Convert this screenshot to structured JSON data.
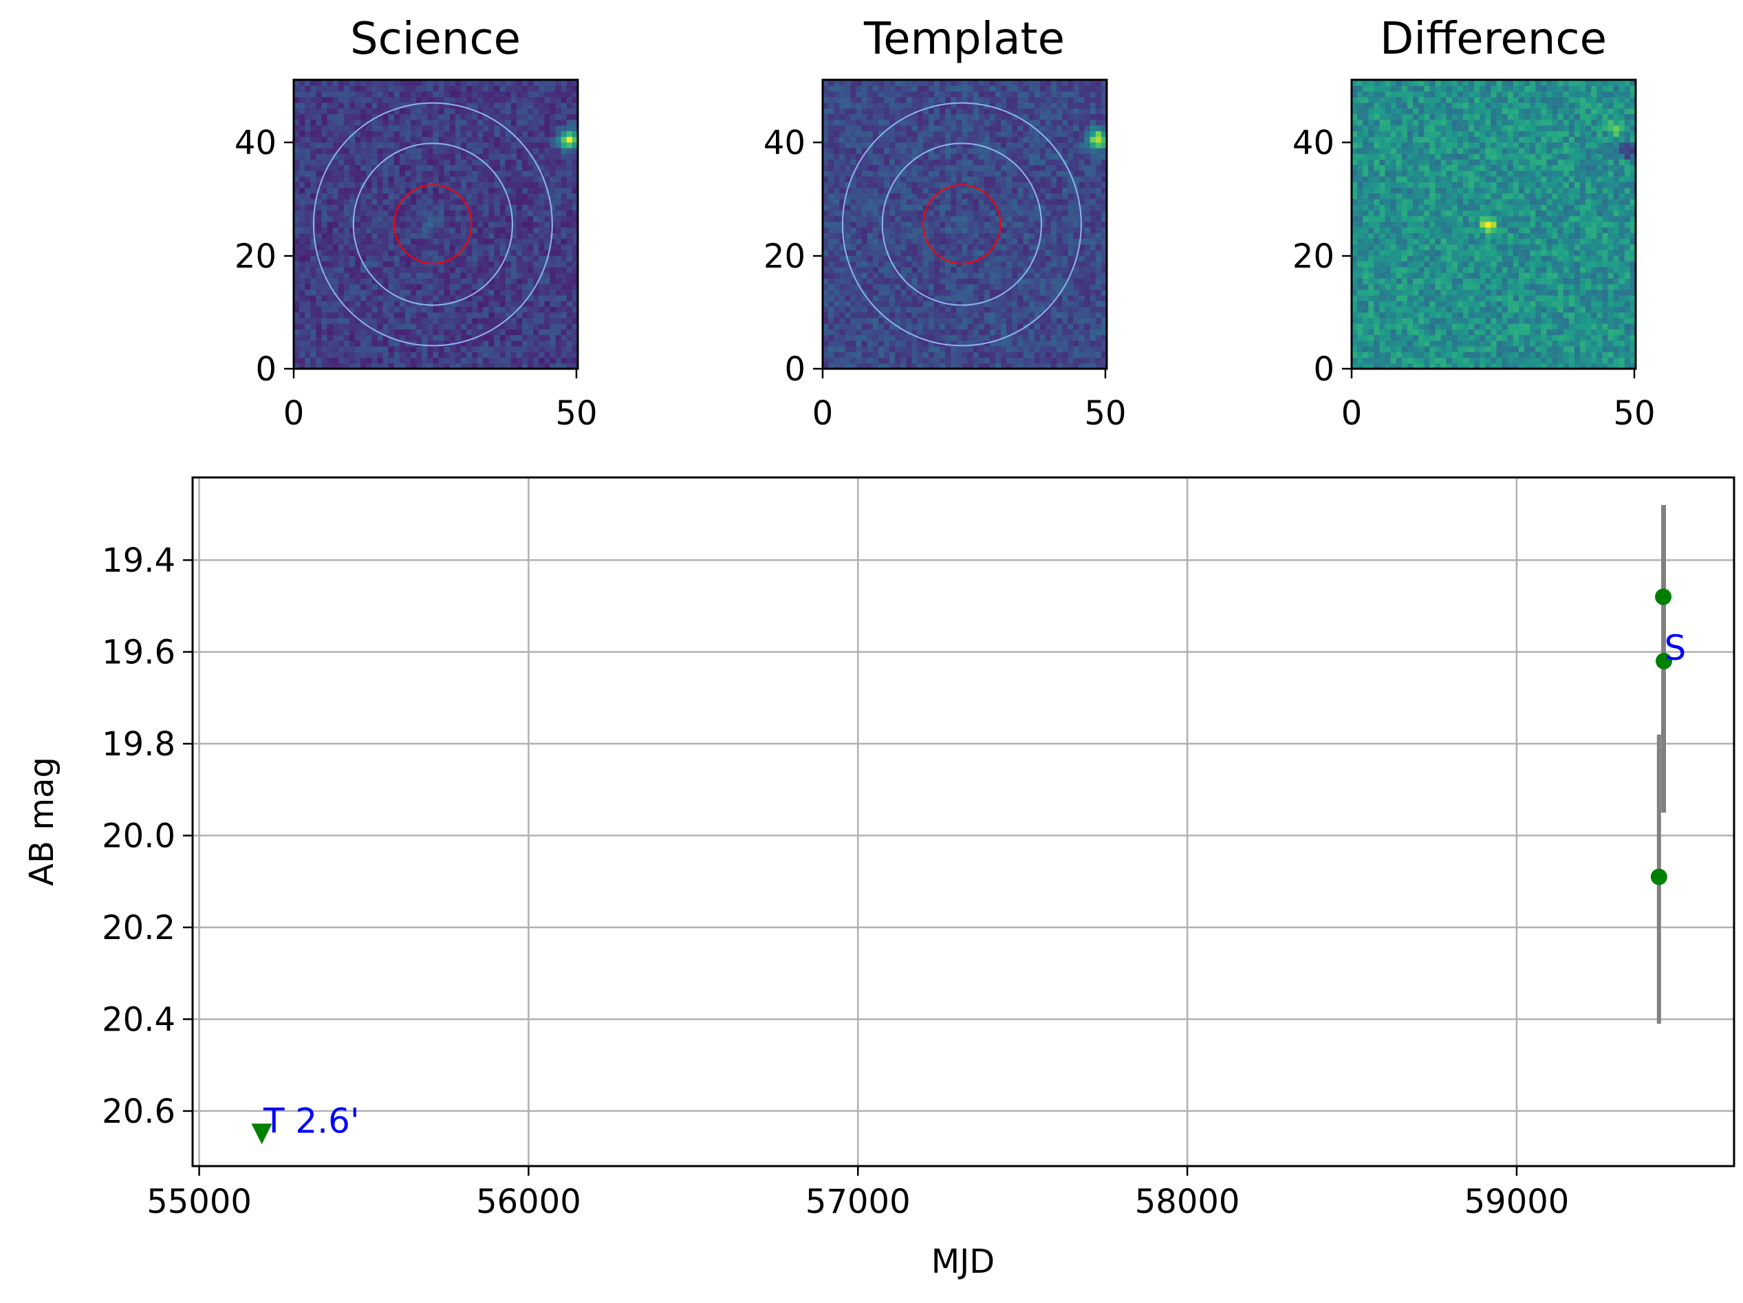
{
  "chart_data": [
    {
      "type": "heatmap",
      "title": "Science",
      "xlim": [
        0,
        50
      ],
      "ylim": [
        0,
        50
      ],
      "xticks": [
        "0",
        "50"
      ],
      "yticks": [
        "0",
        "20",
        "40"
      ],
      "colormap": "viridis",
      "grid_size": 51,
      "background_level": 0.18,
      "noise_level": 0.09,
      "sources": [
        {
          "x": 49,
          "y": 40,
          "amplitude": 0.75,
          "sigma": 1.2
        },
        {
          "x": 24,
          "y": 25,
          "amplitude": 0.12,
          "sigma": 1.5
        }
      ],
      "circles": [
        {
          "cx": 24.5,
          "cy": 25,
          "r": 6.8,
          "color": "#ff0000"
        },
        {
          "cx": 24.5,
          "cy": 25,
          "r": 14,
          "color": "#8fb4f2"
        },
        {
          "cx": 24.5,
          "cy": 25,
          "r": 21,
          "color": "#8fb4f2"
        }
      ]
    },
    {
      "type": "heatmap",
      "title": "Template",
      "xlim": [
        0,
        50
      ],
      "ylim": [
        0,
        50
      ],
      "xticks": [
        "0",
        "50"
      ],
      "yticks": [
        "0",
        "20",
        "40"
      ],
      "colormap": "viridis",
      "grid_size": 51,
      "background_level": 0.22,
      "noise_level": 0.09,
      "sources": [
        {
          "x": 49,
          "y": 40,
          "amplitude": 0.75,
          "sigma": 1.2
        },
        {
          "x": 24,
          "y": 24,
          "amplitude": 0.05,
          "sigma": 1.5
        }
      ],
      "circles": [
        {
          "cx": 24.5,
          "cy": 25,
          "r": 6.8,
          "color": "#ff0000"
        },
        {
          "cx": 24.5,
          "cy": 25,
          "r": 14,
          "color": "#8fb4f2"
        },
        {
          "cx": 24.5,
          "cy": 25,
          "r": 21,
          "color": "#8fb4f2"
        }
      ]
    },
    {
      "type": "heatmap",
      "title": "Difference",
      "xlim": [
        0,
        50
      ],
      "ylim": [
        0,
        50
      ],
      "xticks": [
        "0",
        "50"
      ],
      "yticks": [
        "0",
        "20",
        "40"
      ],
      "colormap": "viridis",
      "grid_size": 51,
      "background_level": 0.5,
      "noise_level": 0.13,
      "sources": [
        {
          "x": 24,
          "y": 25,
          "amplitude": 0.45,
          "sigma": 1.0
        },
        {
          "x": 47,
          "y": 42,
          "amplitude": 0.35,
          "sigma": 0.8
        },
        {
          "x": 49,
          "y": 38,
          "amplitude": -0.4,
          "sigma": 0.9
        }
      ],
      "circles": []
    },
    {
      "type": "scatter",
      "title": "",
      "xlabel": "MJD",
      "ylabel": "AB mag",
      "xlim": [
        54980,
        59660
      ],
      "ylim": [
        20.72,
        19.22
      ],
      "y_inverted": true,
      "xticks": [
        55000,
        56000,
        57000,
        58000,
        59000
      ],
      "yticks": [
        19.4,
        19.6,
        19.8,
        20.0,
        20.2,
        20.4,
        20.6
      ],
      "ytick_labels": [
        "19.4",
        "19.6",
        "19.8",
        "20.0",
        "20.2",
        "20.4",
        "20.6"
      ],
      "grid": true,
      "detections": {
        "color": "#008000",
        "points": [
          {
            "x": 59445,
            "y": 19.48,
            "err_low": 19.28,
            "err_high": 19.95
          },
          {
            "x": 59447,
            "y": 19.62,
            "err_low": 19.28,
            "err_high": 19.95
          },
          {
            "x": 59432,
            "y": 20.09,
            "err_low": 19.78,
            "err_high": 20.41
          }
        ]
      },
      "upper_limits": {
        "color": "#008000",
        "marker": "triangle-down",
        "points": [
          {
            "x": 55190,
            "y": 20.65
          }
        ]
      },
      "errorbar_color": "#808080",
      "annotations": [
        {
          "text": "S",
          "x": 59448,
          "y": 19.59,
          "color": "#0000ff"
        },
        {
          "text": "T 2.6'",
          "x": 55195,
          "y": 20.62,
          "color": "#0000ff"
        }
      ]
    }
  ]
}
